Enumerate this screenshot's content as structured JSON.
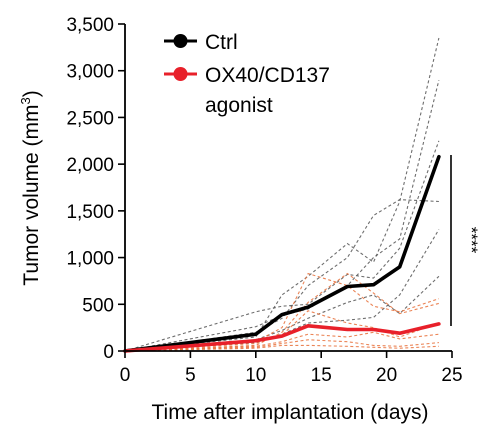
{
  "chart_data": {
    "type": "line",
    "xlabel": "Time after implantation (days)",
    "ylabel": "Tumor volume (mm",
    "ylabel_superscript": "3",
    "ylabel_close": ")",
    "xlim": [
      0,
      25
    ],
    "ylim": [
      0,
      3500
    ],
    "xticks": [
      0,
      5,
      10,
      15,
      20,
      25
    ],
    "xtick_labels": [
      "0",
      "5",
      "10",
      "15",
      "20",
      "25"
    ],
    "yticks": [
      0,
      500,
      1000,
      1500,
      2000,
      2500,
      3000,
      3500
    ],
    "ytick_labels": [
      "0",
      "500",
      "1,000",
      "1,500",
      "2,000",
      "2,500",
      "3,000",
      "3,500"
    ],
    "grid": false,
    "legend_position": "top-left",
    "significance": "****",
    "series": [
      {
        "name": "Ctrl",
        "color": "#000000",
        "x": [
          0,
          10,
          12,
          14,
          17,
          19,
          21,
          24
        ],
        "values": [
          0,
          180,
          390,
          470,
          690,
          710,
          900,
          2080
        ]
      },
      {
        "name": "OX40/CD137 agonist",
        "legend_lines": [
          "OX40/CD137",
          "agonist"
        ],
        "color": "#e8202a",
        "x": [
          0,
          10,
          12,
          14,
          17,
          19,
          21,
          24
        ],
        "values": [
          0,
          110,
          160,
          270,
          230,
          230,
          190,
          290
        ]
      }
    ],
    "individual_traces": [
      {
        "group": "Ctrl",
        "color": "#555555",
        "x": [
          0,
          10,
          12,
          14,
          17,
          19,
          21,
          24
        ],
        "values": [
          0,
          150,
          600,
          800,
          1150,
          950,
          1600,
          3350
        ]
      },
      {
        "group": "Ctrl",
        "color": "#555555",
        "x": [
          0,
          10,
          12,
          14,
          17,
          19,
          21,
          24
        ],
        "values": [
          0,
          260,
          380,
          450,
          700,
          1000,
          1200,
          2900
        ]
      },
      {
        "group": "Ctrl",
        "color": "#555555",
        "x": [
          0,
          10,
          12,
          14,
          17,
          19,
          21,
          24
        ],
        "values": [
          0,
          200,
          350,
          700,
          1000,
          1450,
          1620,
          1600
        ]
      },
      {
        "group": "Ctrl",
        "color": "#555555",
        "x": [
          0,
          10,
          12,
          14,
          17,
          19,
          21,
          24
        ],
        "values": [
          0,
          420,
          480,
          500,
          820,
          780,
          1100,
          2250
        ]
      },
      {
        "group": "Ctrl",
        "color": "#555555",
        "x": [
          0,
          10,
          12,
          14,
          17,
          19,
          21,
          24
        ],
        "values": [
          0,
          120,
          220,
          350,
          520,
          600,
          400,
          800
        ]
      },
      {
        "group": "Ctrl",
        "color": "#555555",
        "x": [
          0,
          10,
          12,
          14,
          17,
          19,
          21,
          24
        ],
        "values": [
          0,
          90,
          180,
          300,
          330,
          360,
          600,
          1300
        ]
      },
      {
        "group": "OX40/CD137 agonist",
        "color": "#e8703a",
        "x": [
          0,
          10,
          12,
          14,
          17,
          19,
          21,
          24
        ],
        "values": [
          0,
          100,
          250,
          830,
          700,
          480,
          420,
          560
        ]
      },
      {
        "group": "OX40/CD137 agonist",
        "color": "#e8703a",
        "x": [
          0,
          10,
          12,
          14,
          17,
          19,
          21,
          24
        ],
        "values": [
          0,
          60,
          200,
          520,
          830,
          620,
          400,
          510
        ]
      },
      {
        "group": "OX40/CD137 agonist",
        "color": "#e8703a",
        "x": [
          0,
          10,
          12,
          14,
          17,
          19,
          21,
          24
        ],
        "values": [
          0,
          80,
          170,
          430,
          300,
          250,
          150,
          300
        ]
      },
      {
        "group": "OX40/CD137 agonist",
        "color": "#e8703a",
        "x": [
          0,
          10,
          12,
          14,
          17,
          19,
          21,
          24
        ],
        "values": [
          0,
          50,
          100,
          180,
          150,
          200,
          130,
          180
        ]
      },
      {
        "group": "OX40/CD137 agonist",
        "color": "#e8703a",
        "x": [
          0,
          10,
          12,
          14,
          17,
          19,
          21,
          24
        ],
        "values": [
          0,
          40,
          80,
          120,
          100,
          60,
          50,
          90
        ]
      },
      {
        "group": "OX40/CD137 agonist",
        "color": "#e8703a",
        "x": [
          0,
          10,
          12,
          14,
          17,
          19,
          21,
          24
        ],
        "values": [
          0,
          30,
          60,
          60,
          50,
          40,
          30,
          50
        ]
      }
    ]
  }
}
